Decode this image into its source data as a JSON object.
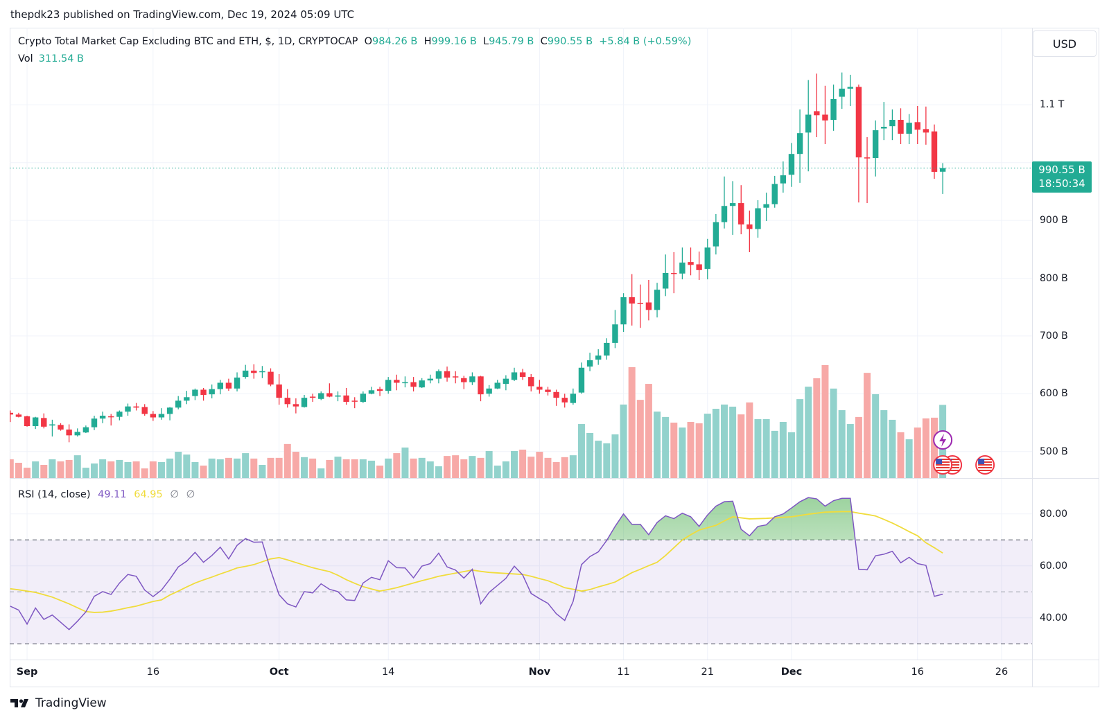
{
  "byline": "thepdk23 published on TradingView.com, Dec 19, 2024 05:09 UTC",
  "legend": {
    "symbol": "Crypto Total Market Cap Excluding BTC and ETH, $, 1D, CRYPTOCAP",
    "open_label": "O",
    "open": "984.26 B",
    "high_label": "H",
    "high": "999.16 B",
    "low_label": "L",
    "low": "945.79 B",
    "close_label": "C",
    "close": "990.55 B",
    "change": "+5.84 B (+0.59%)",
    "vol_label": "Vol",
    "vol": "311.54 B"
  },
  "currency": "USD",
  "last_price": {
    "price": "990.55 B",
    "countdown": "18:50:34"
  },
  "rsi_legend": {
    "label": "RSI (14, close)",
    "rsi": "49.11",
    "ma": "64.95",
    "n1": "∅",
    "n2": "∅"
  },
  "footer": {
    "brand": "TradingView"
  },
  "colors": {
    "up": "#22ab94",
    "down": "#f23645",
    "rsi": "#7e57c2",
    "rsi_ma": "#f0dc3c"
  },
  "events": [
    {
      "icon": "lightning-icon"
    },
    {
      "icon": "us-flag-icon"
    },
    {
      "icon": "us-flag-icon"
    },
    {
      "icon": "us-flag-icon"
    }
  ],
  "chart_data": {
    "type": "candlestick",
    "title": "Crypto Total Market Cap Excluding BTC and ETH, $, 1D, CRYPTOCAP",
    "start_date": "2024-08-30",
    "ohlc_fields": [
      "open",
      "high",
      "low",
      "close"
    ],
    "unit": "B USD",
    "ylim": [
      470,
      1190
    ],
    "price_axis": [
      {
        "label": "1.1 T",
        "value": 1100
      },
      {
        "label": "900 B",
        "value": 900
      },
      {
        "label": "800 B",
        "value": 800
      },
      {
        "label": "700 B",
        "value": 700
      },
      {
        "label": "600 B",
        "value": 600
      },
      {
        "label": "500 B",
        "value": 500
      }
    ],
    "time_axis": [
      {
        "label": "Sep",
        "date": "2024-09-01",
        "month": true
      },
      {
        "label": "16",
        "date": "2024-09-16",
        "month": false
      },
      {
        "label": "Oct",
        "date": "2024-10-01",
        "month": true
      },
      {
        "label": "14",
        "date": "2024-10-14",
        "month": false
      },
      {
        "label": "Nov",
        "date": "2024-11-01",
        "month": true
      },
      {
        "label": "11",
        "date": "2024-11-11",
        "month": false
      },
      {
        "label": "21",
        "date": "2024-11-21",
        "month": false
      },
      {
        "label": "Dec",
        "date": "2024-12-01",
        "month": true
      },
      {
        "label": "16",
        "date": "2024-12-16",
        "month": false
      },
      {
        "label": "26",
        "date": "2024-12-26",
        "month": false
      }
    ],
    "candles": [
      [
        567,
        571,
        551,
        564
      ],
      [
        564,
        567,
        559,
        560
      ],
      [
        561,
        562,
        543,
        544
      ],
      [
        544,
        560,
        539,
        559
      ],
      [
        558,
        566,
        540,
        543
      ],
      [
        545,
        555,
        526,
        547
      ],
      [
        546,
        549,
        536,
        538
      ],
      [
        538,
        547,
        516,
        528
      ],
      [
        528,
        540,
        526,
        534
      ],
      [
        533,
        545,
        532,
        542
      ],
      [
        542,
        562,
        537,
        557
      ],
      [
        557,
        569,
        549,
        562
      ],
      [
        561,
        565,
        545,
        560
      ],
      [
        560,
        571,
        554,
        569
      ],
      [
        569,
        583,
        562,
        578
      ],
      [
        578,
        584,
        571,
        576
      ],
      [
        577,
        582,
        562,
        565
      ],
      [
        565,
        570,
        553,
        559
      ],
      [
        559,
        575,
        555,
        565
      ],
      [
        565,
        577,
        554,
        576
      ],
      [
        576,
        596,
        573,
        588
      ],
      [
        588,
        605,
        582,
        594
      ],
      [
        596,
        609,
        589,
        607
      ],
      [
        607,
        610,
        588,
        598
      ],
      [
        599,
        616,
        592,
        608
      ],
      [
        608,
        624,
        599,
        619
      ],
      [
        619,
        626,
        605,
        609
      ],
      [
        609,
        637,
        604,
        628
      ],
      [
        629,
        650,
        626,
        640
      ],
      [
        640,
        651,
        626,
        636
      ],
      [
        638,
        648,
        627,
        639
      ],
      [
        638,
        644,
        613,
        616
      ],
      [
        616,
        634,
        581,
        593
      ],
      [
        593,
        608,
        576,
        582
      ],
      [
        582,
        592,
        566,
        578
      ],
      [
        577,
        598,
        576,
        593
      ],
      [
        595,
        600,
        586,
        593
      ],
      [
        591,
        604,
        589,
        601
      ],
      [
        601,
        618,
        594,
        595
      ],
      [
        595,
        604,
        587,
        597
      ],
      [
        597,
        610,
        581,
        586
      ],
      [
        588,
        594,
        575,
        587
      ],
      [
        586,
        604,
        584,
        600
      ],
      [
        600,
        612,
        599,
        606
      ],
      [
        608,
        612,
        596,
        605
      ],
      [
        605,
        629,
        600,
        624
      ],
      [
        624,
        633,
        606,
        619
      ],
      [
        619,
        630,
        611,
        620
      ],
      [
        620,
        629,
        604,
        612
      ],
      [
        611,
        627,
        610,
        623
      ],
      [
        623,
        633,
        618,
        626
      ],
      [
        626,
        642,
        618,
        639
      ],
      [
        639,
        647,
        621,
        628
      ],
      [
        630,
        639,
        618,
        629
      ],
      [
        627,
        631,
        608,
        620
      ],
      [
        620,
        637,
        615,
        630
      ],
      [
        630,
        631,
        587,
        599
      ],
      [
        600,
        615,
        595,
        609
      ],
      [
        609,
        624,
        608,
        619
      ],
      [
        617,
        632,
        606,
        626
      ],
      [
        624,
        645,
        622,
        637
      ],
      [
        637,
        643,
        624,
        629
      ],
      [
        629,
        634,
        604,
        613
      ],
      [
        612,
        624,
        600,
        607
      ],
      [
        607,
        612,
        597,
        603
      ],
      [
        603,
        607,
        579,
        593
      ],
      [
        593,
        600,
        576,
        585
      ],
      [
        584,
        609,
        581,
        600
      ],
      [
        602,
        654,
        600,
        645
      ],
      [
        647,
        671,
        639,
        658
      ],
      [
        659,
        677,
        650,
        666
      ],
      [
        666,
        696,
        659,
        688
      ],
      [
        688,
        745,
        679,
        720
      ],
      [
        720,
        774,
        707,
        767
      ],
      [
        767,
        807,
        718,
        756
      ],
      [
        757,
        789,
        714,
        756
      ],
      [
        758,
        797,
        727,
        745
      ],
      [
        745,
        792,
        732,
        780
      ],
      [
        782,
        841,
        769,
        809
      ],
      [
        809,
        845,
        774,
        808
      ],
      [
        808,
        853,
        798,
        827
      ],
      [
        828,
        853,
        805,
        823
      ],
      [
        824,
        846,
        797,
        814
      ],
      [
        816,
        868,
        798,
        853
      ],
      [
        855,
        911,
        841,
        897
      ],
      [
        897,
        976,
        886,
        925
      ],
      [
        925,
        968,
        875,
        930
      ],
      [
        930,
        961,
        876,
        893
      ],
      [
        893,
        917,
        845,
        885
      ],
      [
        885,
        935,
        870,
        921
      ],
      [
        922,
        948,
        899,
        928
      ],
      [
        928,
        977,
        922,
        963
      ],
      [
        964,
        1002,
        948,
        978
      ],
      [
        979,
        1034,
        958,
        1015
      ],
      [
        1015,
        1092,
        965,
        1051
      ],
      [
        1052,
        1143,
        985,
        1083
      ],
      [
        1089,
        1154,
        1044,
        1082
      ],
      [
        1083,
        1133,
        1032,
        1073
      ],
      [
        1074,
        1135,
        1055,
        1110
      ],
      [
        1114,
        1156,
        1093,
        1128
      ],
      [
        1128,
        1152,
        1098,
        1131
      ],
      [
        1131,
        1135,
        931,
        1009
      ],
      [
        1009,
        1044,
        930,
        1008
      ],
      [
        1008,
        1073,
        976,
        1056
      ],
      [
        1059,
        1105,
        1039,
        1062
      ],
      [
        1063,
        1092,
        1039,
        1074
      ],
      [
        1074,
        1094,
        1032,
        1050
      ],
      [
        1050,
        1084,
        1032,
        1069
      ],
      [
        1070,
        1098,
        1032,
        1057
      ],
      [
        1058,
        1097,
        1031,
        1052
      ],
      [
        1054,
        1066,
        972,
        984
      ],
      [
        984.26,
        999.16,
        945.79,
        990.55
      ]
    ],
    "volume": [
      80,
      65,
      44,
      71,
      56,
      80,
      71,
      77,
      97,
      44,
      62,
      80,
      71,
      77,
      68,
      71,
      41,
      71,
      68,
      83,
      112,
      100,
      68,
      53,
      83,
      80,
      86,
      83,
      106,
      83,
      56,
      86,
      86,
      145,
      112,
      89,
      83,
      41,
      77,
      91,
      80,
      80,
      80,
      74,
      53,
      83,
      106,
      130,
      83,
      86,
      71,
      50,
      94,
      97,
      80,
      94,
      86,
      115,
      53,
      71,
      115,
      121,
      91,
      112,
      86,
      68,
      89,
      97,
      230,
      192,
      159,
      148,
      186,
      313,
      472,
      333,
      401,
      283,
      260,
      236,
      215,
      239,
      233,
      274,
      295,
      313,
      304,
      271,
      322,
      251,
      251,
      201,
      239,
      195,
      336,
      389,
      425,
      481,
      381,
      289,
      230,
      260,
      448,
      357,
      289,
      248,
      195,
      165,
      215,
      254,
      257,
      311.54
    ],
    "rsi": {
      "period": 14,
      "levels": {
        "upper": 70,
        "middle": 50,
        "lower": 30
      },
      "axis": [
        {
          "label": "80.00",
          "value": 80
        },
        {
          "label": "60.00",
          "value": 60
        },
        {
          "label": "40.00",
          "value": 40
        }
      ],
      "ylim": [
        24,
        96
      ],
      "values": [
        44.5,
        43.0,
        37.6,
        43.8,
        39.4,
        41.1,
        38.3,
        35.5,
        38.7,
        42.3,
        48.3,
        50.1,
        49.0,
        53.4,
        56.7,
        56.0,
        50.7,
        48.2,
        50.7,
        54.9,
        59.6,
        61.8,
        65.2,
        61.4,
        64.0,
        67.2,
        62.7,
        67.9,
        70.5,
        69.1,
        69.2,
        58.3,
        48.9,
        45.4,
        44.2,
        50.1,
        49.6,
        53.1,
        51.0,
        50.1,
        46.9,
        46.7,
        53.4,
        55.6,
        54.7,
        62.0,
        59.3,
        59.2,
        55.4,
        59.9,
        60.9,
        64.9,
        59.6,
        58.4,
        55.3,
        58.7,
        45.4,
        49.8,
        52.5,
        55.2,
        59.9,
        56.5,
        49.4,
        47.4,
        45.6,
        41.6,
        39.0,
        46.3,
        60.5,
        63.6,
        65.4,
        69.8,
        75.2,
        80.0,
        76.0,
        76.0,
        72.0,
        76.7,
        79.3,
        78.2,
        80.3,
        78.9,
        75.2,
        79.6,
        83.0,
        84.7,
        84.9,
        74.1,
        71.6,
        75.2,
        75.8,
        78.9,
        80.0,
        82.3,
        84.7,
        86.3,
        85.8,
        83.0,
        85.1,
        86.0,
        86.0,
        58.7,
        58.5,
        63.9,
        64.5,
        65.6,
        61.2,
        63.3,
        60.9,
        60.2,
        48.3,
        49.11
      ],
      "ma": [
        51.2,
        50.8,
        50.3,
        49.8,
        48.9,
        48.0,
        46.7,
        45.4,
        43.9,
        42.4,
        42.1,
        42.2,
        42.6,
        43.2,
        43.9,
        44.5,
        45.4,
        46.3,
        46.9,
        48.8,
        50.3,
        51.9,
        53.4,
        54.6,
        55.7,
        56.9,
        58.0,
        59.2,
        59.8,
        60.5,
        61.6,
        62.7,
        63.2,
        62.3,
        61.3,
        60.3,
        59.3,
        58.5,
        57.8,
        56.4,
        54.7,
        53.3,
        52.0,
        51.1,
        50.3,
        50.9,
        51.6,
        52.5,
        53.4,
        54.3,
        55.1,
        56.0,
        56.6,
        57.2,
        57.8,
        58.4,
        57.9,
        57.5,
        57.3,
        57.1,
        56.9,
        56.7,
        56.0,
        55.1,
        54.3,
        53.0,
        51.6,
        51.0,
        50.3,
        50.9,
        51.9,
        52.8,
        53.8,
        55.6,
        57.4,
        58.7,
        60.1,
        61.4,
        64.0,
        67.0,
        70.0,
        72.0,
        73.8,
        74.7,
        75.6,
        77.3,
        78.9,
        78.5,
        78.1,
        78.2,
        78.3,
        78.5,
        78.7,
        78.9,
        79.4,
        79.9,
        80.3,
        80.7,
        80.8,
        80.9,
        80.9,
        80.3,
        79.8,
        79.2,
        77.9,
        76.5,
        74.9,
        73.2,
        71.6,
        68.9,
        67.0,
        64.95
      ]
    }
  }
}
